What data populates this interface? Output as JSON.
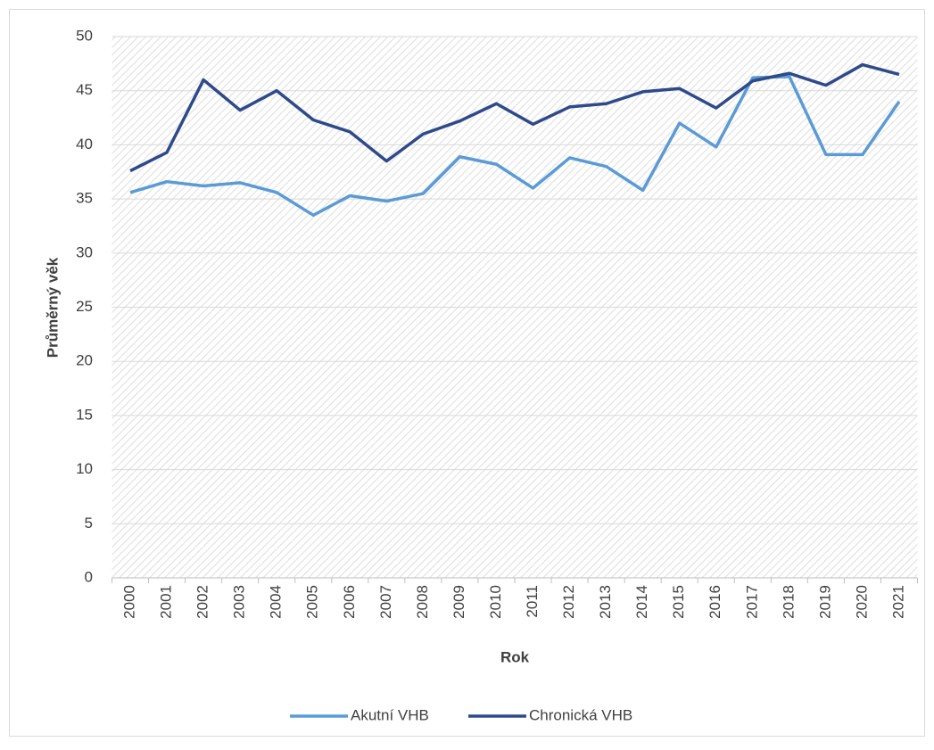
{
  "chart_data": {
    "type": "line",
    "x_label": "Rok",
    "y_label": "Průměrný věk",
    "categories": [
      "2000",
      "2001",
      "2002",
      "2003",
      "2004",
      "2005",
      "2006",
      "2007",
      "2008",
      "2009",
      "2010",
      "2011",
      "2012",
      "2013",
      "2014",
      "2015",
      "2016",
      "2017",
      "2018",
      "2019",
      "2020",
      "2021"
    ],
    "series": [
      {
        "name": "Akutní VHB",
        "color": "#5b9bd5",
        "values": [
          35.6,
          36.6,
          36.2,
          36.5,
          35.6,
          33.5,
          35.3,
          34.8,
          35.5,
          38.9,
          38.2,
          36.0,
          38.8,
          38.0,
          35.8,
          42.0,
          39.8,
          46.2,
          46.3,
          39.1,
          39.1,
          44.0
        ]
      },
      {
        "name": "Chronická VHB",
        "color": "#2e4a8b",
        "values": [
          37.6,
          39.3,
          46.0,
          43.2,
          45.0,
          42.3,
          41.2,
          38.5,
          41.0,
          42.2,
          43.8,
          41.9,
          43.5,
          43.8,
          44.9,
          45.2,
          43.4,
          45.9,
          46.6,
          45.5,
          47.4,
          46.5
        ]
      }
    ],
    "ylim": [
      0,
      50
    ],
    "yticks": [
      0,
      5,
      10,
      15,
      20,
      25,
      30,
      35,
      40,
      45,
      50
    ],
    "grid": true,
    "legend": "bottom"
  }
}
